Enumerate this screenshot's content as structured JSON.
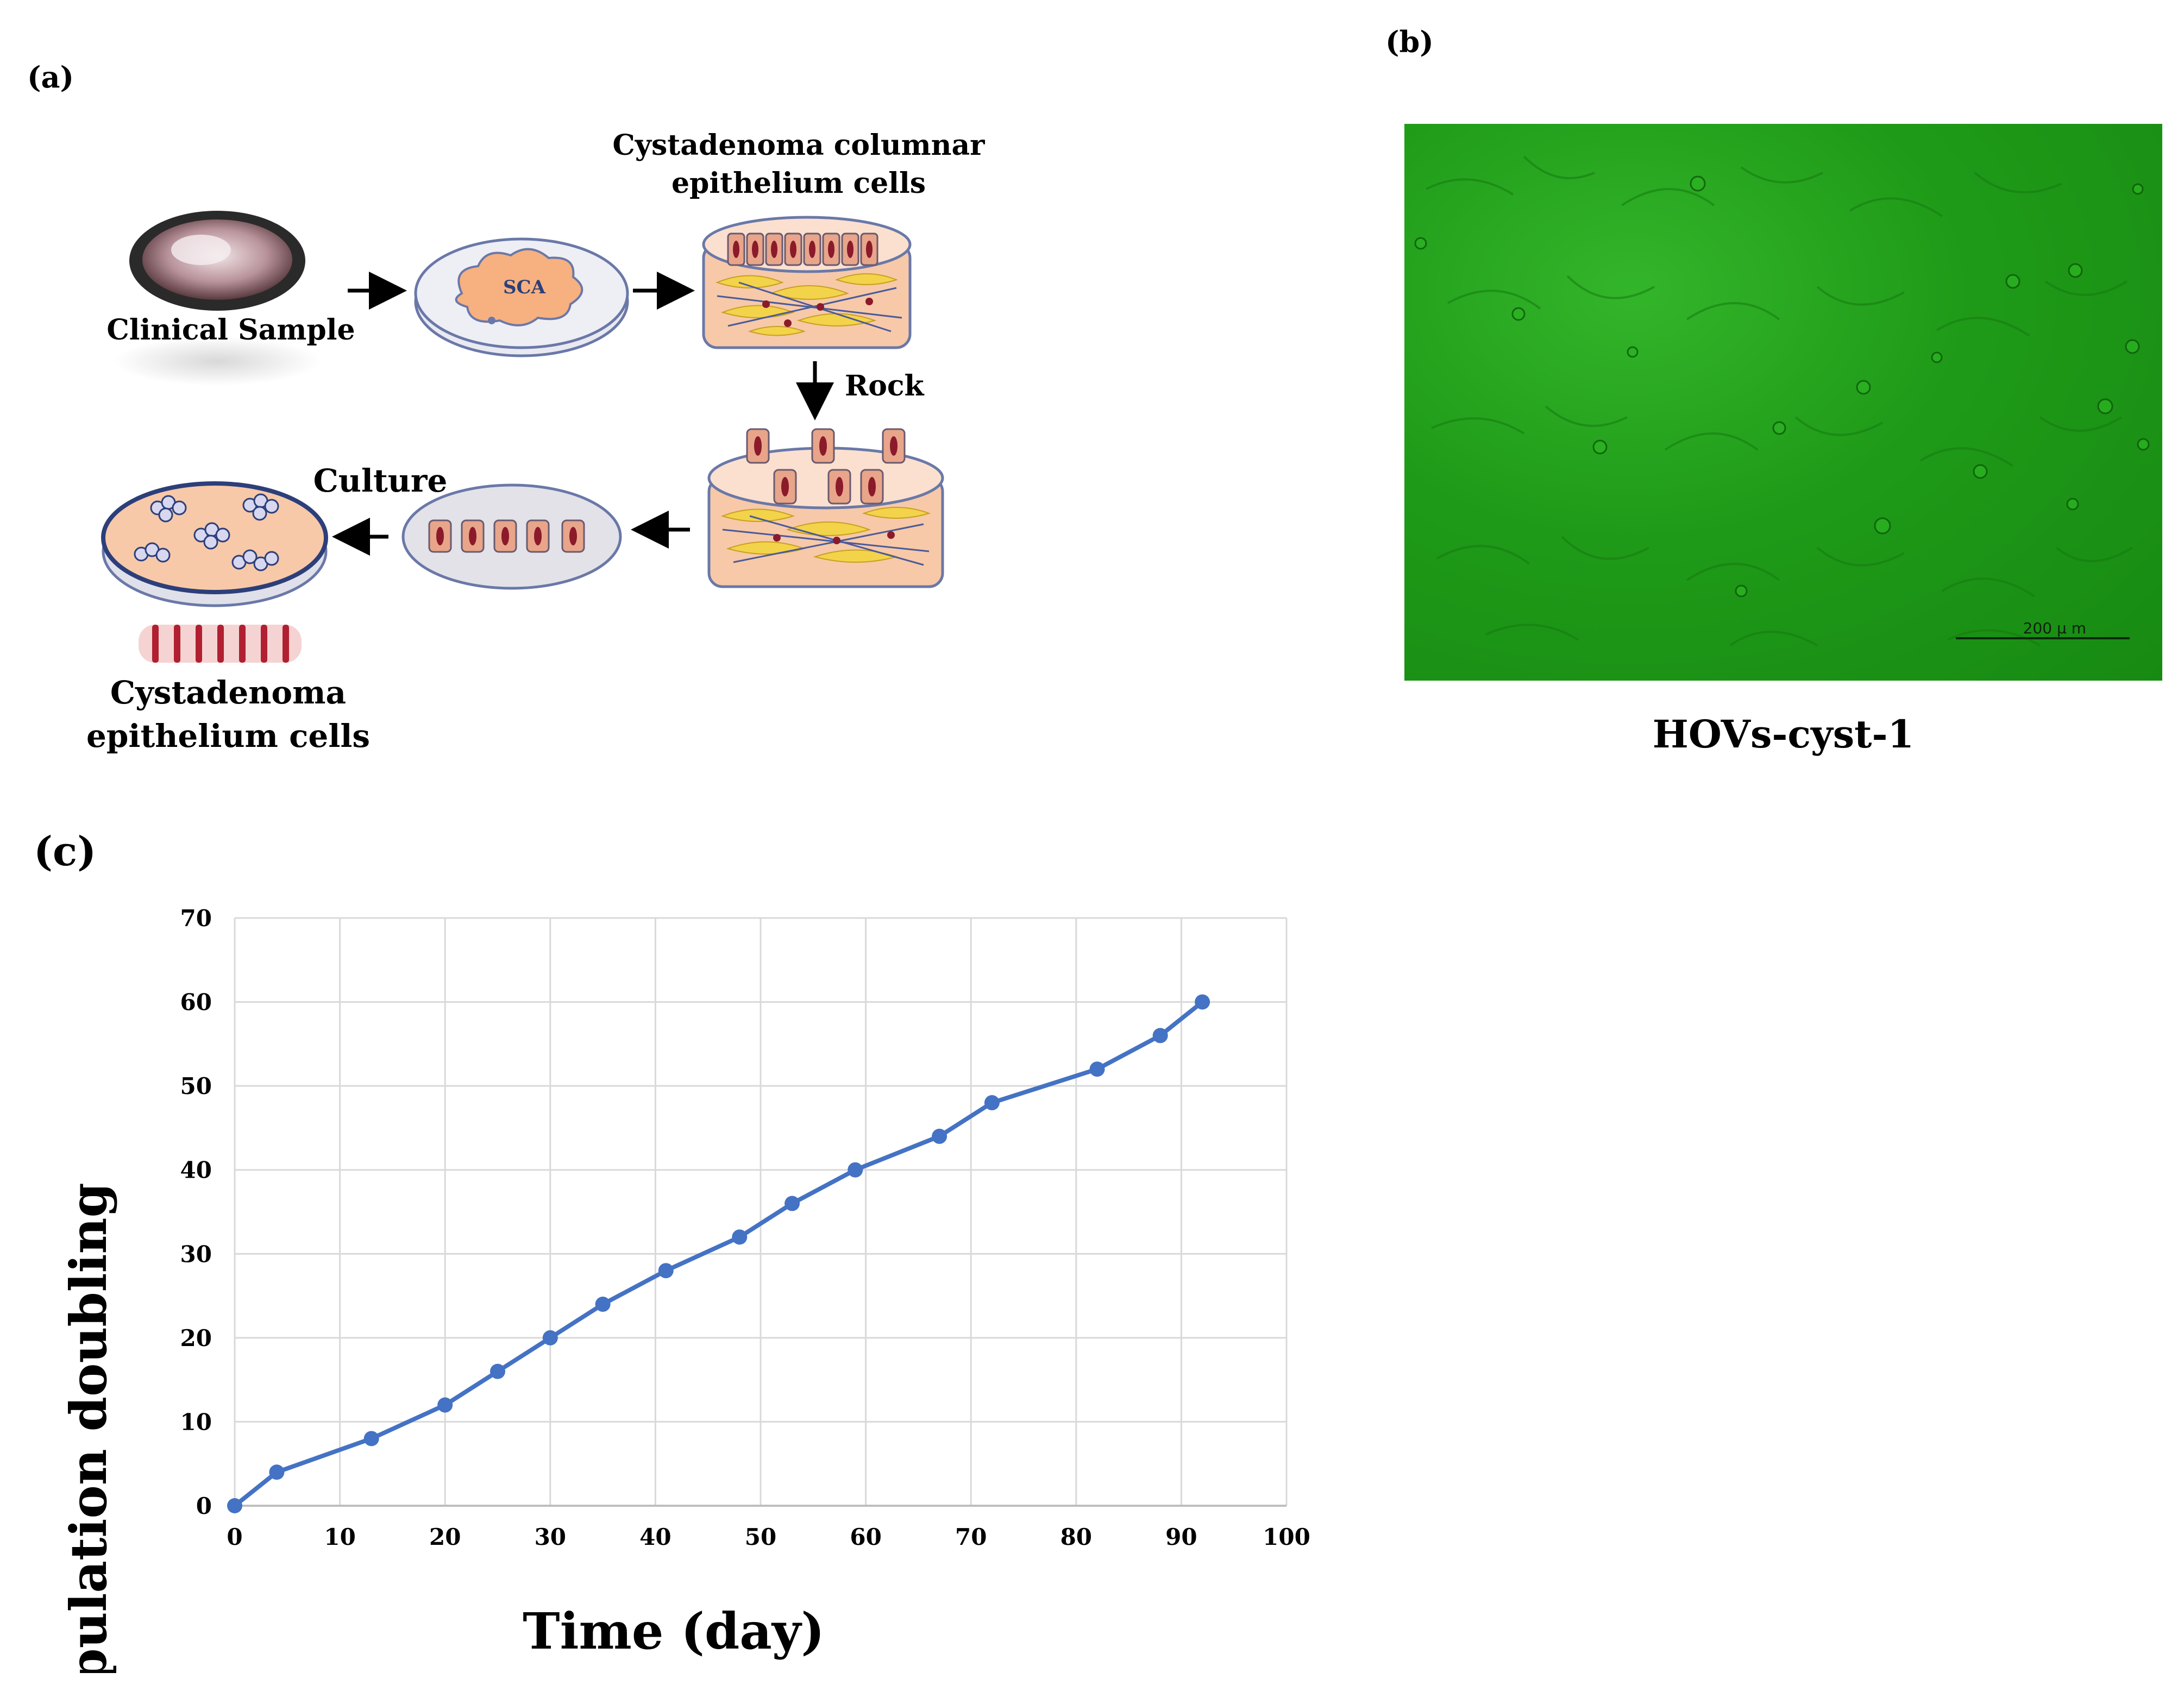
{
  "panels": {
    "a": {
      "label": "(a)",
      "clinical_sample": "Clinical Sample",
      "sca": "SCA",
      "columnar_title_1": "Cystadenoma columnar",
      "columnar_title_2": "epithelium cells",
      "rock": "Rock",
      "culture": "Culture",
      "result_title_1": "Cystadenoma",
      "result_title_2": "epithelium cells"
    },
    "b": {
      "label": "(b)",
      "scale_bar": "200 μ m",
      "caption": "HOVs-cyst-1"
    },
    "c": {
      "label": "(c)"
    }
  },
  "colors": {
    "line": "#4472c4",
    "grid": "#d9d9d9",
    "dish_fill": "#f7c9a8",
    "cell_fill": "#e8a58a",
    "nucleus": "#8b1a2b",
    "stroma_yellow": "#f3d34a",
    "micrograph_green": "#1f9a18"
  },
  "chart_data": {
    "type": "line",
    "title": "",
    "xlabel": "Time (day)",
    "ylabel": "Population doubling",
    "xlim": [
      0,
      100
    ],
    "ylim": [
      0,
      70
    ],
    "xticks": [
      0,
      10,
      20,
      30,
      40,
      50,
      60,
      70,
      80,
      90,
      100
    ],
    "yticks": [
      0,
      10,
      20,
      30,
      40,
      50,
      60,
      70
    ],
    "grid": true,
    "series": [
      {
        "x": [
          0,
          4,
          13,
          20,
          25,
          30,
          35,
          41,
          48,
          53,
          59,
          67,
          72,
          82,
          88,
          92
        ],
        "y": [
          0,
          4,
          8,
          12,
          16,
          20,
          24,
          28,
          32,
          36,
          40,
          44,
          48,
          52,
          56,
          60
        ]
      }
    ]
  }
}
